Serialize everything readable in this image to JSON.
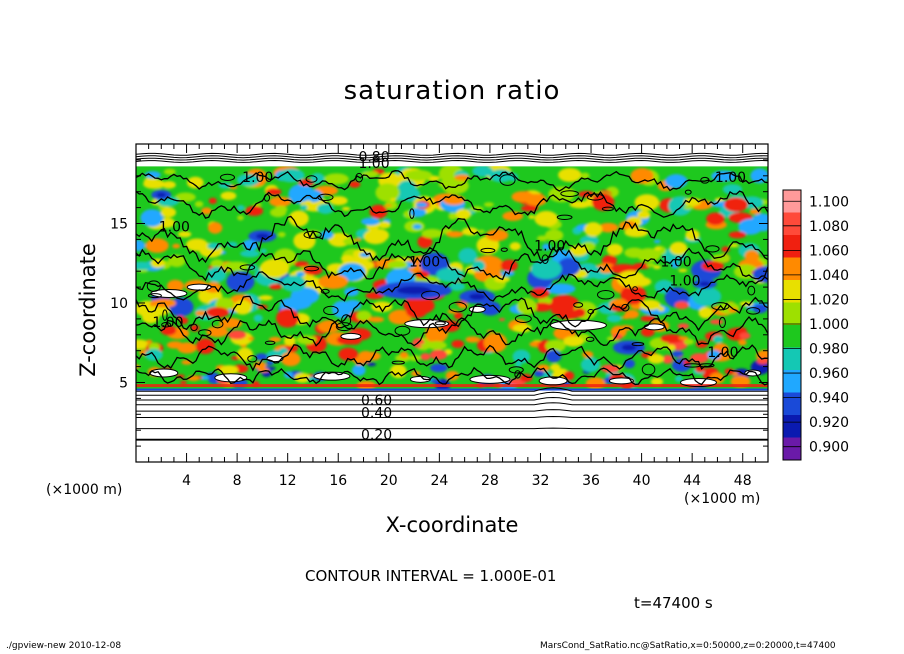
{
  "chart_data": {
    "type": "heatmap",
    "title": "saturation ratio",
    "xlabel": "X-coordinate",
    "ylabel": "Z-coordinate",
    "x_unit": "(×1000 m)",
    "x_unit_right": "(×1000 m)",
    "xlim": [
      0,
      50
    ],
    "ylim": [
      0,
      20
    ],
    "x_ticks": [
      4,
      8,
      12,
      16,
      20,
      24,
      28,
      32,
      36,
      40,
      44,
      48
    ],
    "y_ticks": [
      5,
      10,
      15
    ],
    "colorbar": {
      "levels": [
        "1.100",
        "1.080",
        "1.060",
        "1.040",
        "1.020",
        "1.000",
        "0.980",
        "0.960",
        "0.940",
        "0.920",
        "0.900"
      ],
      "colors": [
        "#ff9a9a",
        "#ff4a3a",
        "#f02010",
        "#ff8a00",
        "#e8e000",
        "#9ee000",
        "#1ec81e",
        "#14c8b4",
        "#20a8ff",
        "#1a4ad8",
        "#0a1ab0",
        "#6a1aa8"
      ]
    },
    "contour_labels": [
      {
        "text": "0.80",
        "x": 17.6,
        "z": 18.9
      },
      {
        "text": "1.00",
        "x": 17.6,
        "z": 18.5
      },
      {
        "text": "1.00",
        "x": 8.4,
        "z": 17.6
      },
      {
        "text": "1.00",
        "x": 45.8,
        "z": 17.6
      },
      {
        "text": "1.00",
        "x": 1.8,
        "z": 14.5
      },
      {
        "text": "1.00",
        "x": 21.6,
        "z": 12.3
      },
      {
        "text": "1.00",
        "x": 31.5,
        "z": 13.3
      },
      {
        "text": "1.00",
        "x": 41.5,
        "z": 12.3
      },
      {
        "text": "1.00",
        "x": 42.2,
        "z": 11.1
      },
      {
        "text": "1.00",
        "x": 1.3,
        "z": 8.5
      },
      {
        "text": "1.00",
        "x": 45.2,
        "z": 6.6
      },
      {
        "text": "0.60",
        "x": 17.8,
        "z": 3.6
      },
      {
        "text": "0.40",
        "x": 17.8,
        "z": 2.8
      },
      {
        "text": "0.20",
        "x": 17.8,
        "z": 1.4
      }
    ]
  },
  "contour_interval": "CONTOUR INTERVAL = 1.000E-01",
  "time_label": "t=47400 s",
  "footer_left": "./gpview-new   2010-12-08",
  "footer_right": "MarsCond_SatRatio.nc@SatRatio,x=0:50000,z=0:20000,t=47400"
}
